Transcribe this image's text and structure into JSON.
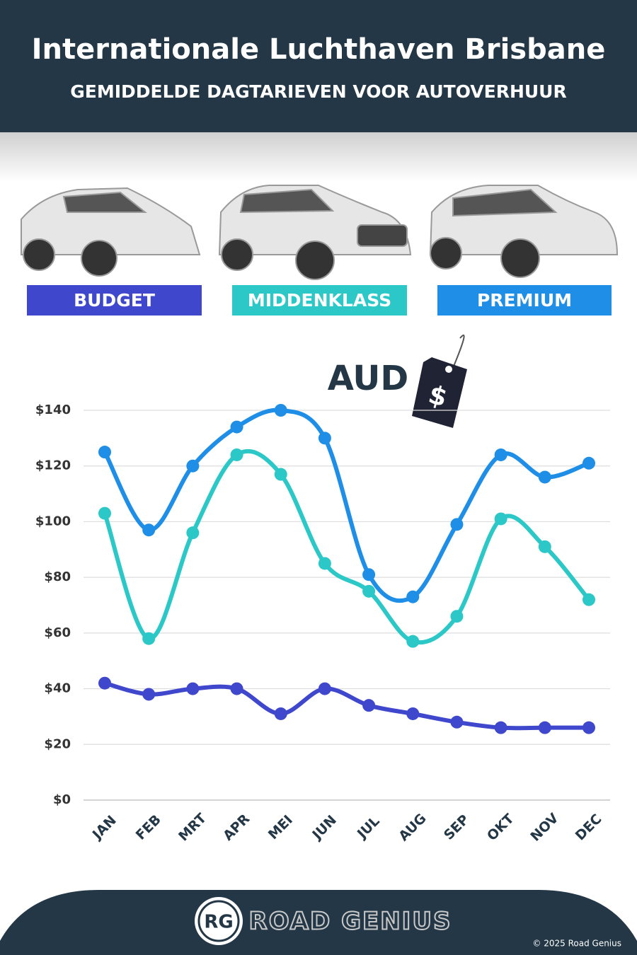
{
  "header": {
    "title": "Internationale Luchthaven Brisbane",
    "subtitle": "GEMIDDELDE DAGTARIEVEN VOOR AUTOVERHUUR"
  },
  "chart_data": {
    "type": "line",
    "currency": "AUD",
    "tag_symbol": "$",
    "categories": [
      "JAN",
      "FEB",
      "MRT",
      "APR",
      "MEI",
      "JUN",
      "JUL",
      "AUG",
      "SEP",
      "OKT",
      "NOV",
      "DEC"
    ],
    "series": [
      {
        "name": "BUDGET",
        "color": "#3f48cc",
        "values": [
          42,
          38,
          40,
          40,
          31,
          40,
          34,
          31,
          28,
          26,
          26,
          26
        ]
      },
      {
        "name": "MIDDENKLASS",
        "color": "#2cc8c8",
        "values": [
          103,
          58,
          96,
          124,
          117,
          85,
          75,
          57,
          66,
          101,
          91,
          72
        ]
      },
      {
        "name": "PREMIUM",
        "color": "#1e8ee6",
        "values": [
          125,
          97,
          120,
          134,
          140,
          130,
          81,
          73,
          99,
          124,
          116,
          121
        ]
      }
    ],
    "ylim": [
      0,
      140
    ],
    "yticks": [
      {
        "value": 0,
        "label": "$0"
      },
      {
        "value": 20,
        "label": "$20"
      },
      {
        "value": 40,
        "label": "$40"
      },
      {
        "value": 60,
        "label": "$60"
      },
      {
        "value": 80,
        "label": "$80"
      },
      {
        "value": 100,
        "label": "$100"
      },
      {
        "value": 120,
        "label": "$120"
      },
      {
        "value": 140,
        "label": "$140"
      }
    ],
    "grid": true
  },
  "footer": {
    "logo": "RG",
    "brand": "ROAD GENIUS",
    "copyright": "© 2025 Road Genius"
  }
}
